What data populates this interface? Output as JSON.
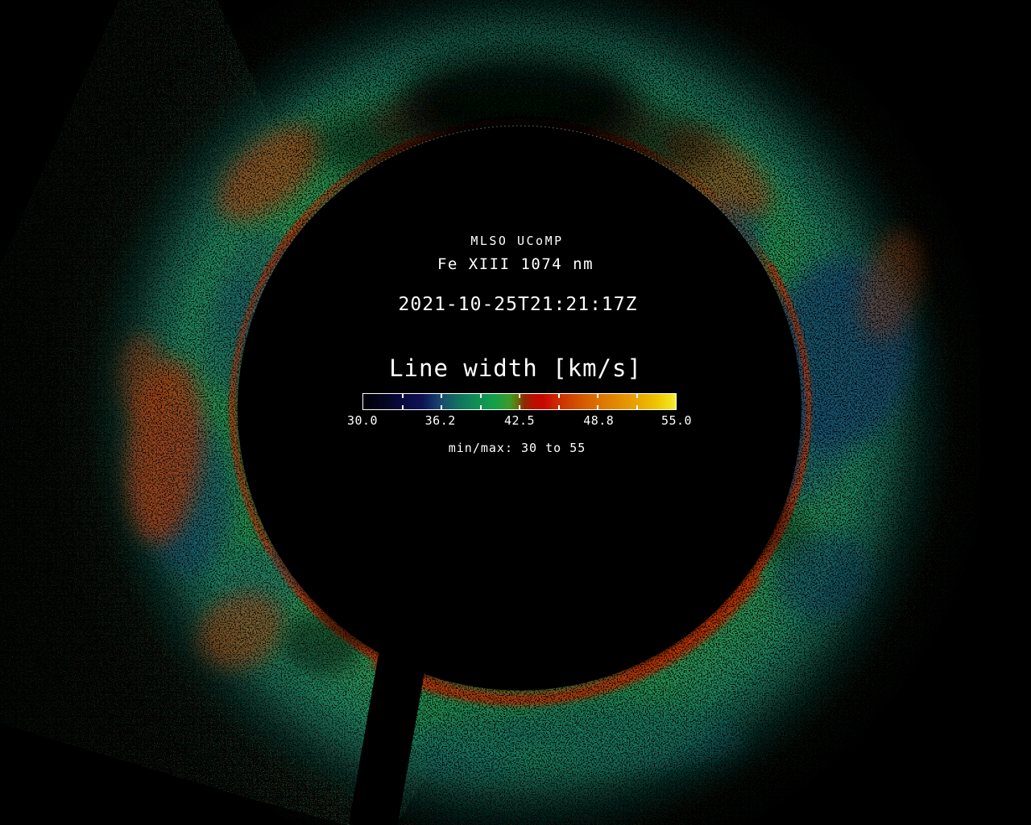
{
  "chart_data": {
    "type": "heatmap",
    "instrument": "MLSO UCoMP",
    "emission_line": "Fe XIII 1074 nm",
    "observation_time": "2021-10-25T21:21:17Z",
    "quantity": "Line width",
    "units": "km/s",
    "colorbar": {
      "title": "Line width [km/s]",
      "min": 30.0,
      "max": 55.0,
      "tick_values": [
        30.0,
        36.2,
        42.5,
        48.8,
        55.0
      ],
      "tick_labels": [
        "30.0",
        "36.2",
        "42.5",
        "48.8",
        "55.0"
      ],
      "segment_ticks": 8,
      "range_note": "min/max: 30 to 55",
      "colormap_stops": [
        {
          "pos": 0.0,
          "color": "#000005"
        },
        {
          "pos": 0.06,
          "color": "#04041e"
        },
        {
          "pos": 0.125,
          "color": "#090940"
        },
        {
          "pos": 0.19,
          "color": "#0e1256"
        },
        {
          "pos": 0.25,
          "color": "#174a70"
        },
        {
          "pos": 0.3,
          "color": "#11705f"
        },
        {
          "pos": 0.36,
          "color": "#0f8e55"
        },
        {
          "pos": 0.42,
          "color": "#13a04a"
        },
        {
          "pos": 0.47,
          "color": "#3f9a28"
        },
        {
          "pos": 0.495,
          "color": "#6e6a08"
        },
        {
          "pos": 0.515,
          "color": "#8c2a02"
        },
        {
          "pos": 0.545,
          "color": "#bb0f00"
        },
        {
          "pos": 0.575,
          "color": "#c80600"
        },
        {
          "pos": 0.625,
          "color": "#cc2e00"
        },
        {
          "pos": 0.6875,
          "color": "#d25200"
        },
        {
          "pos": 0.75,
          "color": "#dd7000"
        },
        {
          "pos": 0.8125,
          "color": "#e38a00"
        },
        {
          "pos": 0.875,
          "color": "#e9a400"
        },
        {
          "pos": 0.9375,
          "color": "#efc400"
        },
        {
          "pos": 0.98,
          "color": "#f2e018"
        },
        {
          "pos": 1.0,
          "color": "#f3ef40"
        }
      ]
    },
    "scene_colors": {
      "background": "#000000",
      "text": "#ffffff",
      "corona_green": "#27965c",
      "corona_teal": "#1b7e6e",
      "rim_red": "#c23a0a",
      "clump_orange": "#c04a10",
      "patch_navy": "#134a78",
      "speckle_blue": "#10416e"
    }
  }
}
